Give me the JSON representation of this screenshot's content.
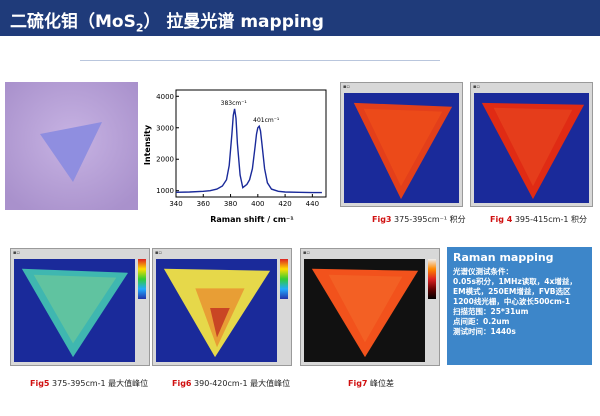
{
  "header": {
    "title_prefix": "二硫化钼（MoS",
    "title_subscript": "2",
    "title_suffix": "） 拉曼光谱 mapping"
  },
  "chart_data": {
    "type": "line",
    "title": "",
    "xlabel": "Raman shift / cm⁻¹",
    "ylabel": "Intensity",
    "xlim": [
      340,
      450
    ],
    "ylim": [
      800,
      4200
    ],
    "x_ticks": [
      340,
      360,
      380,
      400,
      420,
      440
    ],
    "y_ticks": [
      1000,
      2000,
      3000,
      4000
    ],
    "annotations": [
      "383cm⁻¹",
      "401cm⁻¹"
    ],
    "series": [
      {
        "x": [
          340,
          350,
          360,
          365,
          370,
          374,
          377,
          379,
          381,
          382,
          383,
          384,
          385,
          387,
          389,
          392,
          394,
          396,
          398,
          399,
          400,
          401,
          402,
          403,
          405,
          407,
          410,
          415,
          420,
          430,
          440,
          447
        ],
        "values": [
          950,
          960,
          980,
          1000,
          1050,
          1150,
          1350,
          1800,
          2800,
          3400,
          3600,
          3300,
          2500,
          1500,
          1100,
          1200,
          1350,
          1700,
          2400,
          2800,
          3000,
          3050,
          2900,
          2500,
          1700,
          1250,
          1050,
          980,
          960,
          950,
          940,
          940
        ]
      }
    ]
  },
  "captions": {
    "fig3": {
      "num": "Fig3",
      "text": " 375-395cm⁻¹ 积分"
    },
    "fig4": {
      "num": "Fig 4",
      "text": " 395-415cm-1 积分"
    },
    "fig5": {
      "num": "Fig5",
      "text": " 375-395cm-1 最大值峰位"
    },
    "fig6": {
      "num": "Fig6",
      "text": " 390-420cm-1 最大值峰位"
    },
    "fig7": {
      "num": "Fig7",
      "text": " 峰位差"
    }
  },
  "raman_box": {
    "title": "Raman mapping",
    "lines": [
      "光谱仪测试条件：",
      "0.05s积分，1MHz读取，4x增益，EM模式，250EM增益，FVB选区",
      "1200线光栅，中心波长500cm-1",
      "扫描范围：25*31um",
      "点间距：0.2um",
      "测试时间：1440s"
    ]
  },
  "colors": {
    "header_bg": "#1f3b7a",
    "raman_box_bg": "#3d86c9",
    "caption_red": "#d01010",
    "map_blue": "#1a2a9a"
  }
}
